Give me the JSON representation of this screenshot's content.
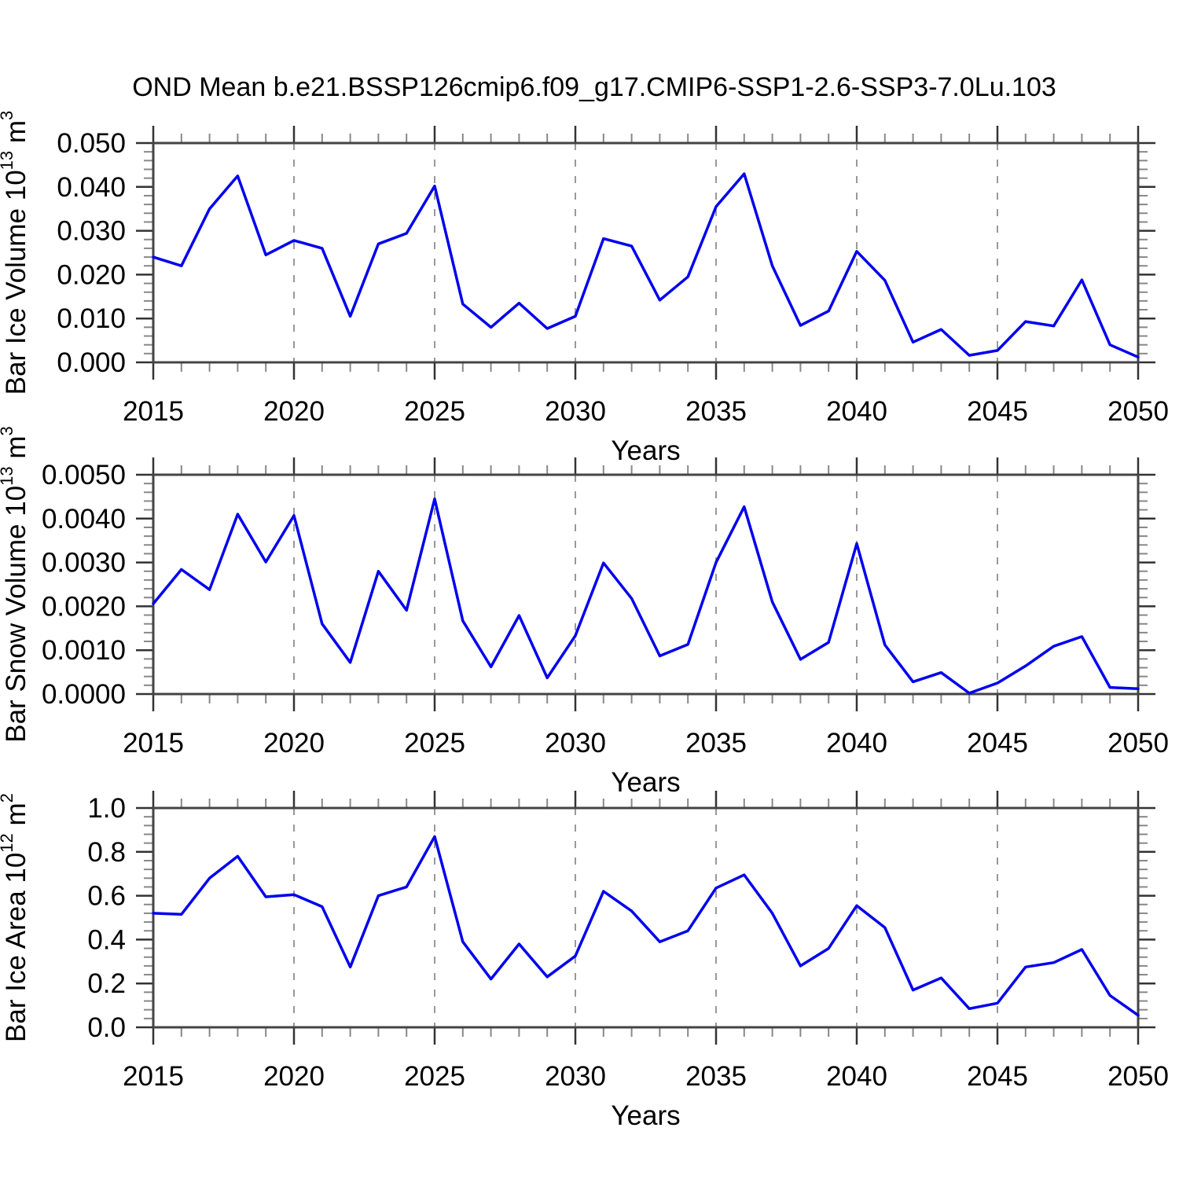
{
  "title": "OND Mean b.e21.BSSP126cmip6.f09_g17.CMIP6-SSP1-2.6-SSP3-7.0Lu.103",
  "background": "#ffffff",
  "colors": {
    "series_line": "#0000ee",
    "plot_border": "#444444",
    "major_tick": "#333333",
    "minor_tick": "#888888",
    "grid_dash": "#999999",
    "text": "#000000"
  },
  "chart_data": [
    {
      "id": "ice-volume",
      "type": "line",
      "xlabel": "Years",
      "ylabel_text": "Bar Ice Volume 10^13 m^3",
      "ylabel_parts": [
        {
          "t": "Bar Ice Volume 10"
        },
        {
          "t": "13",
          "sup": true
        },
        {
          "t": " m"
        },
        {
          "t": "3",
          "sup": true
        }
      ],
      "xlim": [
        2015,
        2050
      ],
      "ylim": [
        0,
        0.05
      ],
      "x_major_ticks": [
        "2015",
        "2020",
        "2025",
        "2030",
        "2035",
        "2040",
        "2045",
        "2050"
      ],
      "grid_years": [
        2020,
        2025,
        2030,
        2035,
        2040,
        2045
      ],
      "y_major_ticks": [
        "0.000",
        "0.010",
        "0.020",
        "0.030",
        "0.040",
        "0.050"
      ],
      "y_minor_step": 0.002,
      "grid_on": "dashed-vertical-only",
      "legend": "none",
      "years": [
        2015,
        2016,
        2017,
        2018,
        2019,
        2020,
        2021,
        2022,
        2023,
        2024,
        2025,
        2026,
        2027,
        2028,
        2029,
        2030,
        2031,
        2032,
        2033,
        2034,
        2035,
        2036,
        2037,
        2038,
        2039,
        2040,
        2041,
        2042,
        2043,
        2044,
        2045,
        2046,
        2047,
        2048,
        2049,
        2050
      ],
      "values": [
        0.024,
        0.022,
        0.035,
        0.0425,
        0.0245,
        0.0278,
        0.026,
        0.0105,
        0.027,
        0.0294,
        0.0402,
        0.0133,
        0.008,
        0.0135,
        0.0077,
        0.0105,
        0.0282,
        0.0265,
        0.0142,
        0.0195,
        0.0355,
        0.043,
        0.022,
        0.0084,
        0.0117,
        0.0253,
        0.0187,
        0.0046,
        0.0075,
        0.0016,
        0.0027,
        0.0093,
        0.0083,
        0.0188,
        0.004,
        0.0012
      ]
    },
    {
      "id": "snow-volume",
      "type": "line",
      "xlabel": "Years",
      "ylabel_text": "Bar Snow Volume 10^13 m^3",
      "ylabel_parts": [
        {
          "t": "Bar Snow Volume 10"
        },
        {
          "t": "13",
          "sup": true
        },
        {
          "t": " m"
        },
        {
          "t": "3",
          "sup": true
        }
      ],
      "xlim": [
        2015,
        2050
      ],
      "ylim": [
        0,
        0.005
      ],
      "x_major_ticks": [
        "2015",
        "2020",
        "2025",
        "2030",
        "2035",
        "2040",
        "2045",
        "2050"
      ],
      "grid_years": [
        2020,
        2025,
        2030,
        2035,
        2040,
        2045
      ],
      "y_major_ticks": [
        "0.0000",
        "0.0010",
        "0.0020",
        "0.0030",
        "0.0040",
        "0.0050"
      ],
      "y_minor_step": 0.0002,
      "grid_on": "dashed-vertical-only",
      "legend": "none",
      "years": [
        2015,
        2016,
        2017,
        2018,
        2019,
        2020,
        2021,
        2022,
        2023,
        2024,
        2025,
        2026,
        2027,
        2028,
        2029,
        2030,
        2031,
        2032,
        2033,
        2034,
        2035,
        2036,
        2037,
        2038,
        2039,
        2040,
        2041,
        2042,
        2043,
        2044,
        2045,
        2046,
        2047,
        2048,
        2049,
        2050
      ],
      "values": [
        0.00206,
        0.00284,
        0.00238,
        0.0041,
        0.00301,
        0.00407,
        0.0016,
        0.00072,
        0.0028,
        0.00191,
        0.00445,
        0.00167,
        0.00062,
        0.00179,
        0.00037,
        0.00133,
        0.00299,
        0.00218,
        0.00087,
        0.00113,
        0.003,
        0.00427,
        0.0021,
        0.00079,
        0.00118,
        0.00343,
        0.00112,
        0.00028,
        0.00049,
        2e-05,
        0.00025,
        0.00064,
        0.00109,
        0.00131,
        0.00015,
        0.00012
      ]
    },
    {
      "id": "ice-area",
      "type": "line",
      "xlabel": "Years",
      "ylabel_text": "Bar Ice Area 10^12 m^2",
      "ylabel_parts": [
        {
          "t": "Bar Ice Area 10"
        },
        {
          "t": "12",
          "sup": true
        },
        {
          "t": " m"
        },
        {
          "t": "2",
          "sup": true
        }
      ],
      "xlim": [
        2015,
        2050
      ],
      "ylim": [
        0,
        1.0
      ],
      "x_major_ticks": [
        "2015",
        "2020",
        "2025",
        "2030",
        "2035",
        "2040",
        "2045",
        "2050"
      ],
      "grid_years": [
        2020,
        2025,
        2030,
        2035,
        2040,
        2045
      ],
      "y_major_ticks": [
        "0.0",
        "0.2",
        "0.4",
        "0.6",
        "0.8",
        "1.0"
      ],
      "y_minor_step": 0.04,
      "grid_on": "dashed-vertical-only",
      "legend": "none",
      "years": [
        2015,
        2016,
        2017,
        2018,
        2019,
        2020,
        2021,
        2022,
        2023,
        2024,
        2025,
        2026,
        2027,
        2028,
        2029,
        2030,
        2031,
        2032,
        2033,
        2034,
        2035,
        2036,
        2037,
        2038,
        2039,
        2040,
        2041,
        2042,
        2043,
        2044,
        2045,
        2046,
        2047,
        2048,
        2049,
        2050
      ],
      "values": [
        0.52,
        0.515,
        0.68,
        0.78,
        0.595,
        0.605,
        0.55,
        0.275,
        0.6,
        0.64,
        0.87,
        0.39,
        0.22,
        0.38,
        0.23,
        0.325,
        0.62,
        0.53,
        0.39,
        0.44,
        0.635,
        0.695,
        0.52,
        0.28,
        0.36,
        0.555,
        0.455,
        0.17,
        0.225,
        0.085,
        0.11,
        0.275,
        0.295,
        0.355,
        0.145,
        0.055
      ]
    }
  ]
}
